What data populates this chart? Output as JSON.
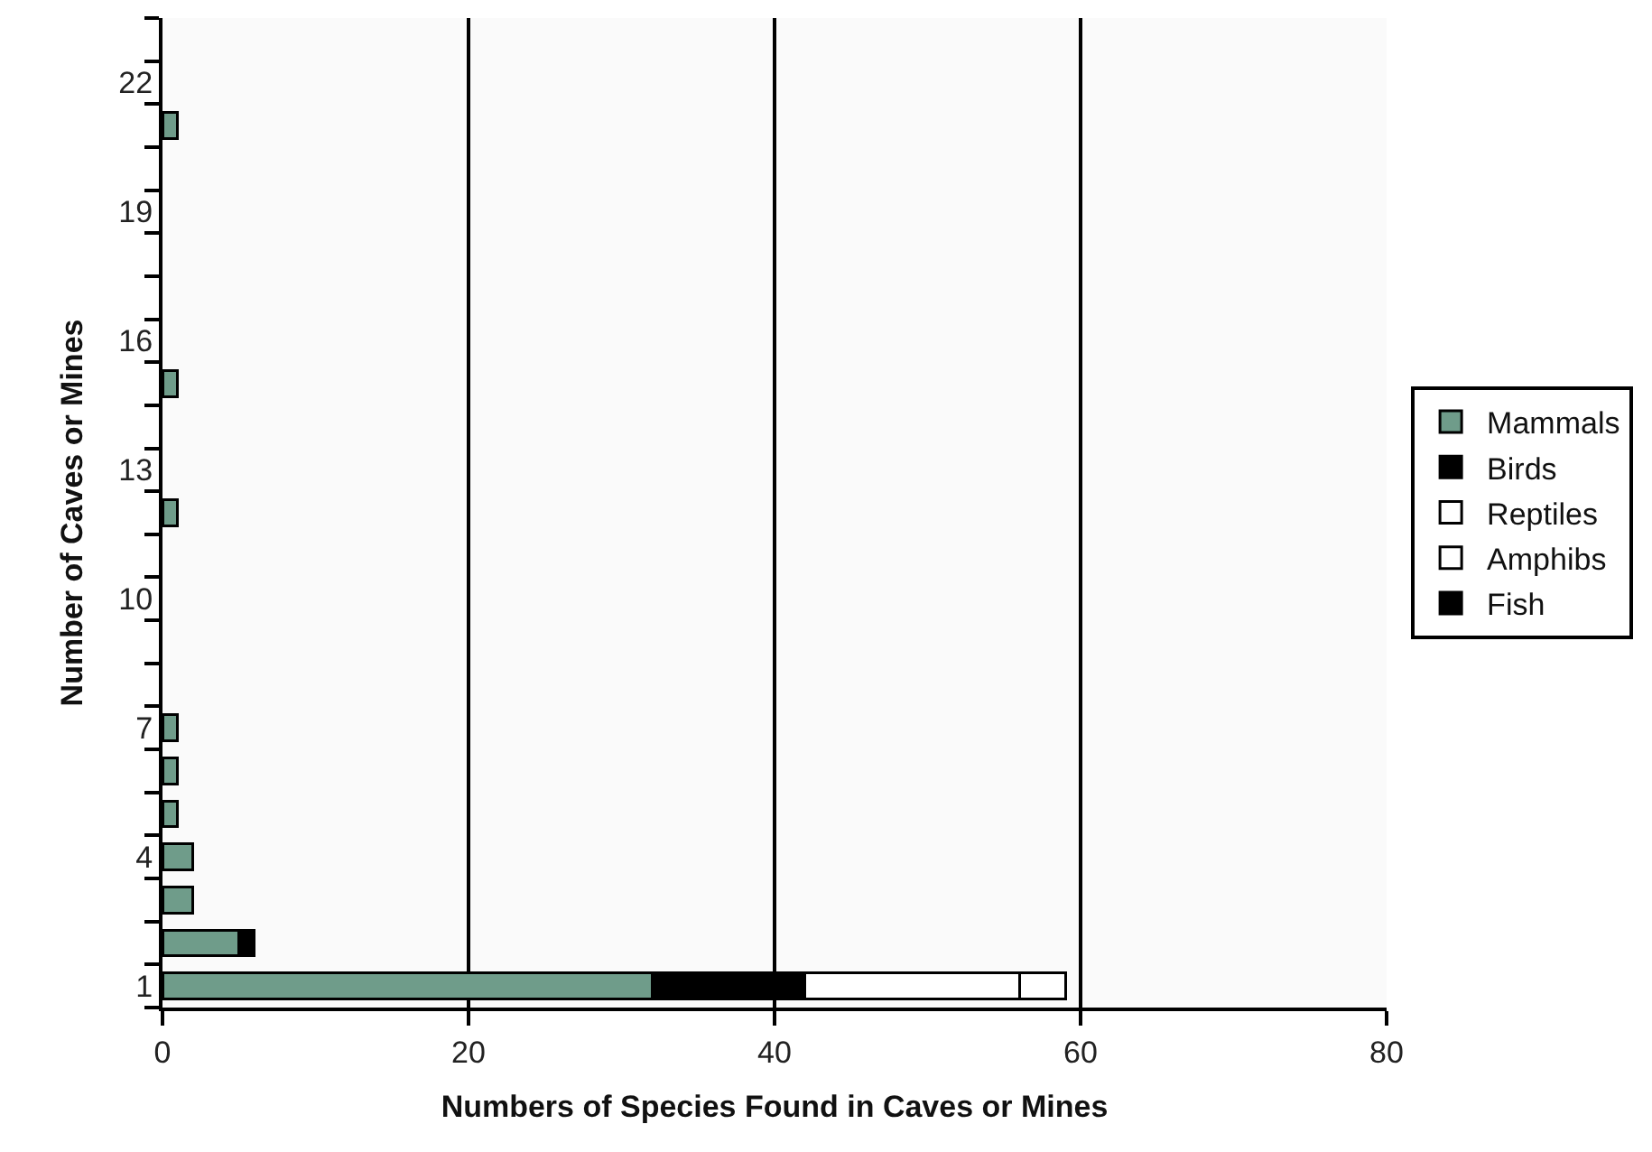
{
  "chart_data": {
    "type": "bar",
    "orientation": "horizontal",
    "stacked": true,
    "xlabel": "Numbers of Species Found in Caves or Mines",
    "ylabel": "Number of Caves or Mines",
    "categories": [
      null,
      "22",
      null,
      null,
      "19",
      null,
      null,
      "16",
      null,
      null,
      "13",
      null,
      null,
      "10",
      null,
      null,
      "7",
      null,
      null,
      "4",
      null,
      null,
      "1"
    ],
    "series": [
      {
        "name": "Mammals",
        "color": "#6f9c8a",
        "values": [
          null,
          null,
          1,
          null,
          null,
          null,
          null,
          null,
          1,
          null,
          null,
          1,
          null,
          null,
          null,
          null,
          1,
          1,
          1,
          2,
          2,
          5,
          32
        ]
      },
      {
        "name": "Birds",
        "color": "#000000",
        "values": [
          null,
          null,
          null,
          null,
          null,
          null,
          null,
          null,
          null,
          null,
          null,
          null,
          null,
          null,
          null,
          null,
          null,
          null,
          null,
          null,
          null,
          1,
          10
        ]
      },
      {
        "name": "Reptiles",
        "color": "#ffffff",
        "values": [
          null,
          null,
          null,
          null,
          null,
          null,
          null,
          null,
          null,
          null,
          null,
          null,
          null,
          null,
          null,
          null,
          null,
          null,
          null,
          null,
          null,
          null,
          14
        ]
      },
      {
        "name": "Amphibs",
        "color": "#ffffff",
        "values": [
          null,
          null,
          null,
          null,
          null,
          null,
          null,
          null,
          null,
          null,
          null,
          null,
          null,
          null,
          null,
          null,
          null,
          null,
          null,
          null,
          null,
          null,
          3
        ]
      },
      {
        "name": "Fish",
        "color": "#000000",
        "values": [
          null,
          null,
          null,
          null,
          null,
          null,
          null,
          null,
          null,
          null,
          null,
          null,
          null,
          null,
          null,
          null,
          null,
          null,
          null,
          null,
          null,
          null,
          null
        ]
      }
    ],
    "xlim": [
      0,
      80
    ],
    "xticks": [
      0,
      20,
      40,
      60,
      80
    ],
    "grid": "x",
    "legend": "right"
  }
}
